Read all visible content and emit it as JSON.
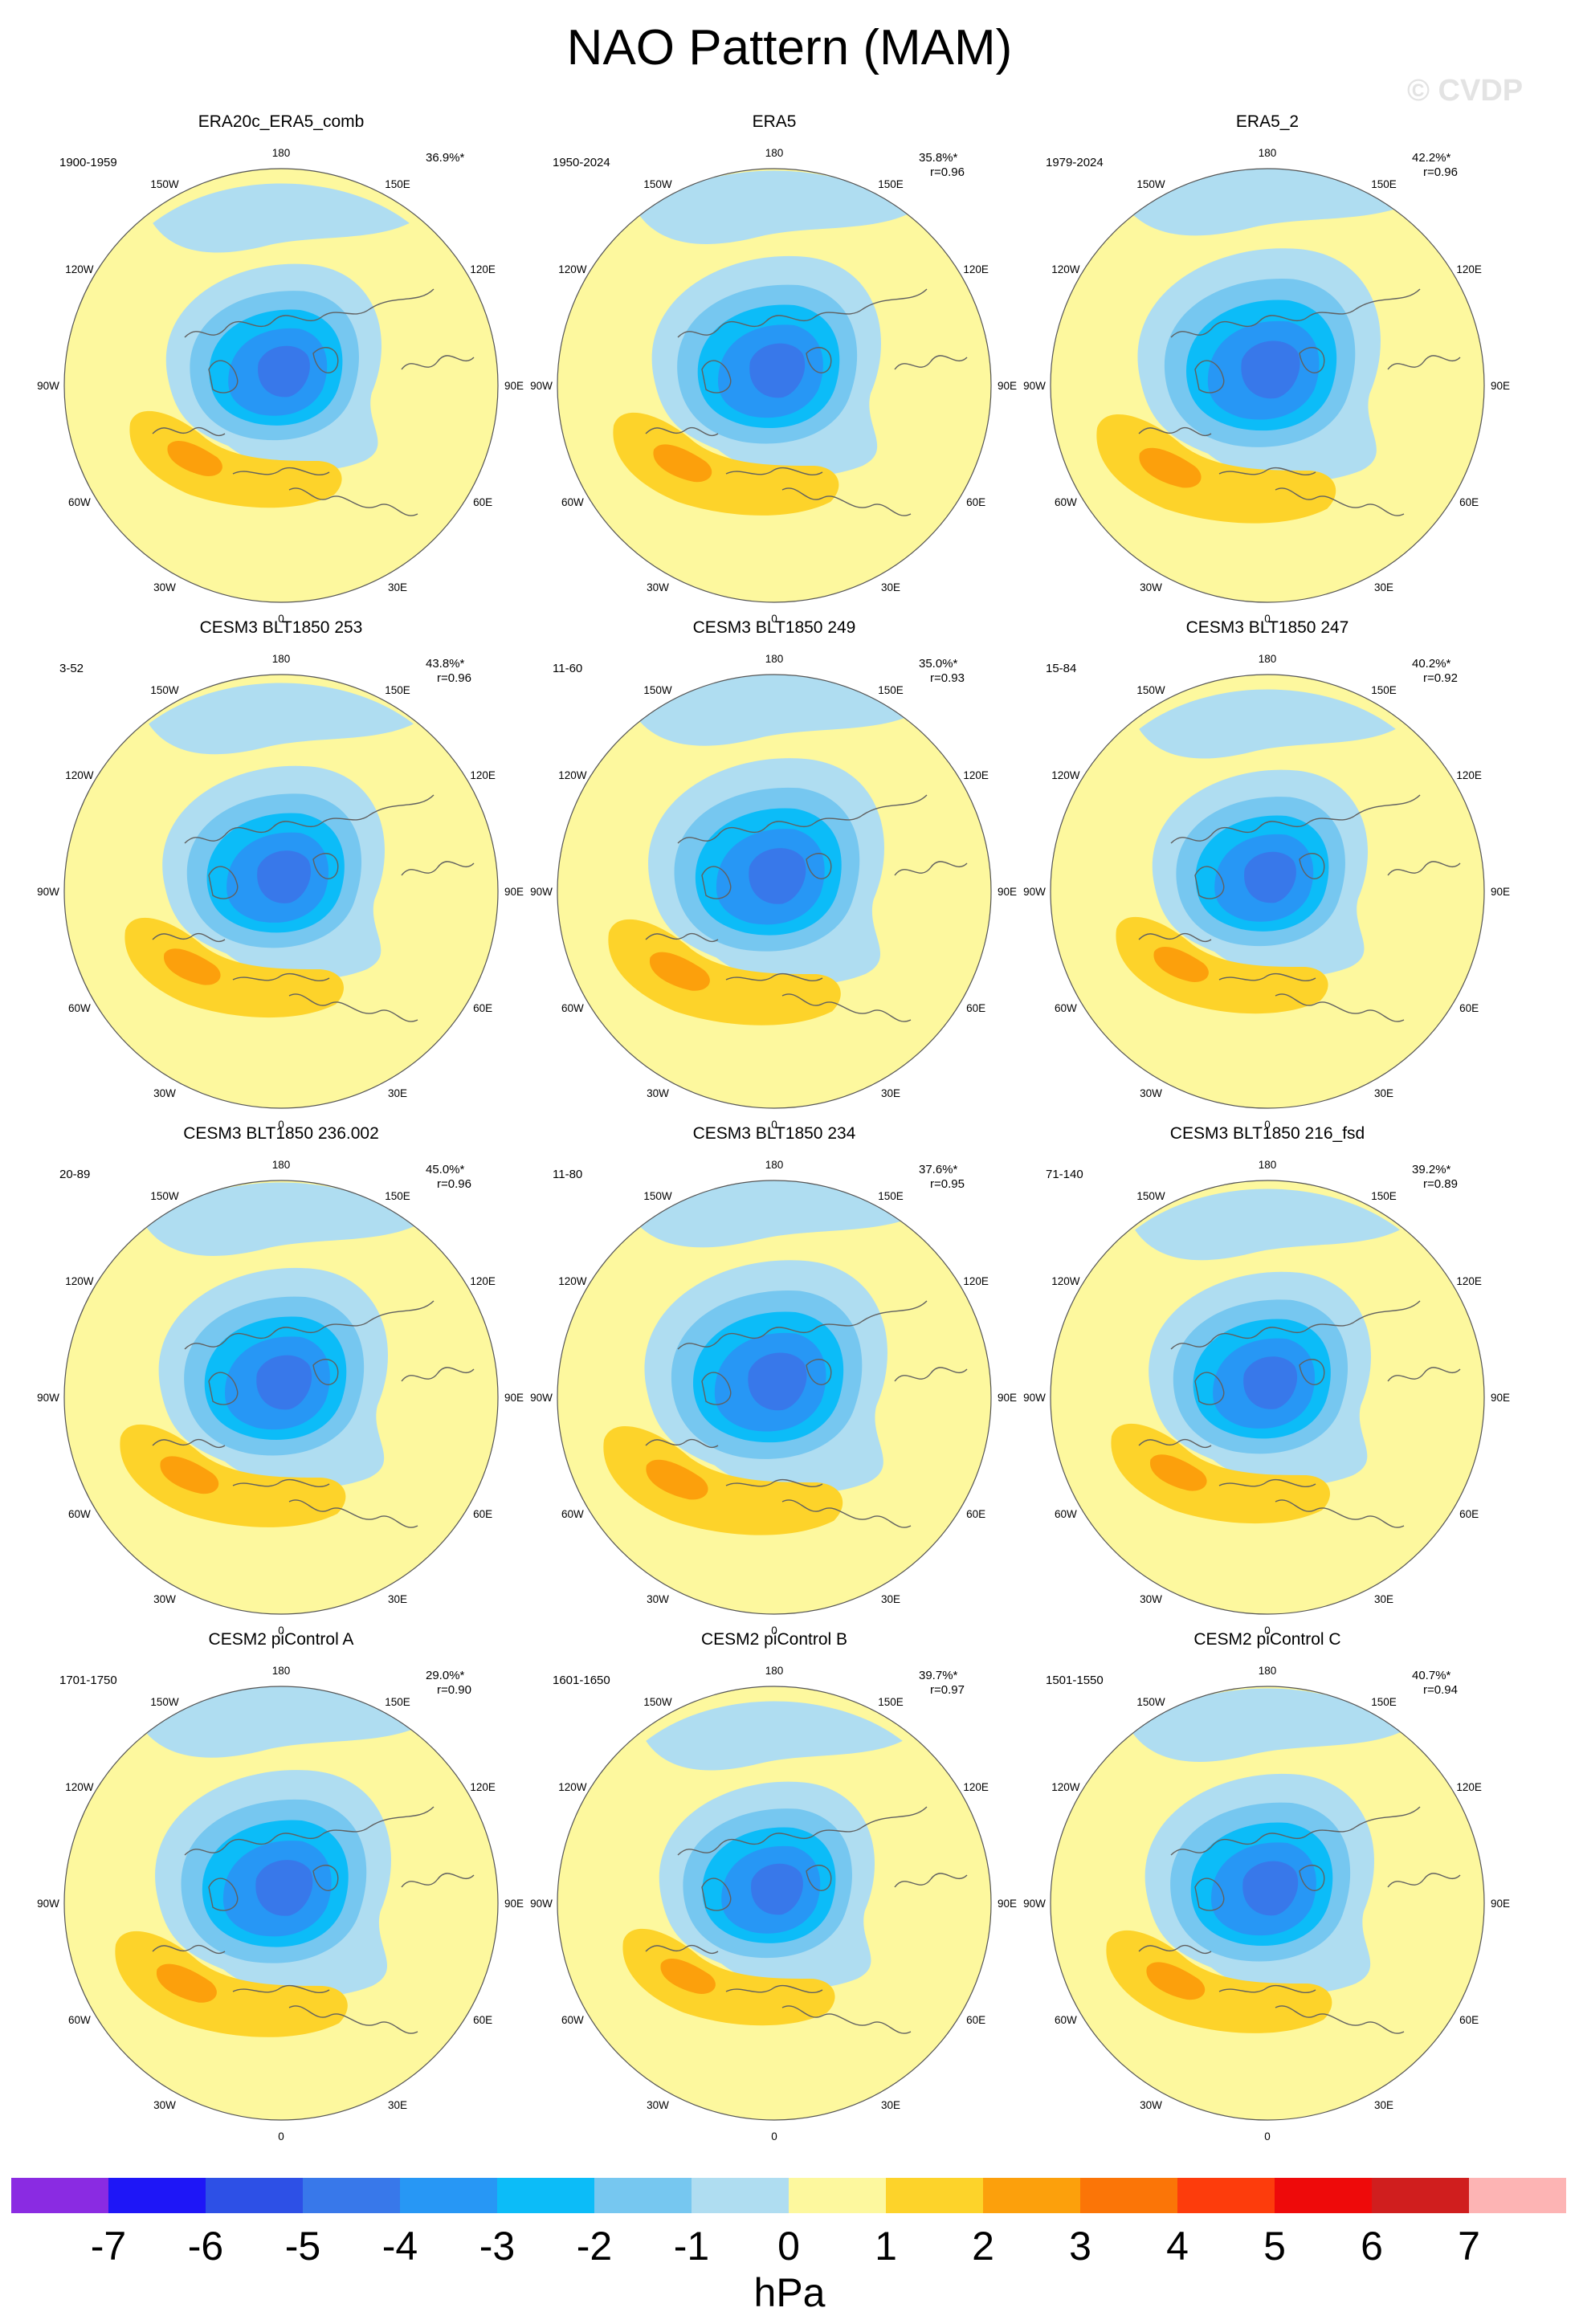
{
  "title": "NAO Pattern (MAM)",
  "watermark": "© CVDP",
  "colors": {
    "yellow": "#fdf89e",
    "lightblue": "#afddf1",
    "gold": "#fdd32a",
    "orange": "#fca00c",
    "midblue": "#76c7f0",
    "cyan": "#0cbcf8",
    "blue": "#2797f5",
    "royal": "#3878ea",
    "deepblue": "#2d50e6",
    "coast": "#606060"
  },
  "longitude_labels": [
    "180",
    "150E",
    "120E",
    "90E",
    "60E",
    "30E",
    "0",
    "30W",
    "60W",
    "90W",
    "120W",
    "150W"
  ],
  "panels": [
    {
      "title": "ERA20c_ERA5_comb",
      "period": "1900-1959",
      "percent": "36.9%*",
      "r": ""
    },
    {
      "title": "ERA5",
      "period": "1950-2024",
      "percent": "35.8%*",
      "r": "r=0.96"
    },
    {
      "title": "ERA5_2",
      "period": "1979-2024",
      "percent": "42.2%*",
      "r": "r=0.96"
    },
    {
      "title": "CESM3 BLT1850 253",
      "period": "3-52",
      "percent": "43.8%*",
      "r": "r=0.96"
    },
    {
      "title": "CESM3 BLT1850 249",
      "period": "11-60",
      "percent": "35.0%*",
      "r": "r=0.93"
    },
    {
      "title": "CESM3 BLT1850 247",
      "period": "15-84",
      "percent": "40.2%*",
      "r": "r=0.92"
    },
    {
      "title": "CESM3 BLT1850 236.002",
      "period": "20-89",
      "percent": "45.0%*",
      "r": "r=0.96"
    },
    {
      "title": "CESM3 BLT1850 234",
      "period": "11-80",
      "percent": "37.6%*",
      "r": "r=0.95"
    },
    {
      "title": "CESM3 BLT1850 216_fsd",
      "period": "71-140",
      "percent": "39.2%*",
      "r": "r=0.89"
    },
    {
      "title": "CESM2 piControl A",
      "period": "1701-1750",
      "percent": "29.0%*",
      "r": "r=0.90"
    },
    {
      "title": "CESM2 piControl B",
      "period": "1601-1650",
      "percent": "39.7%*",
      "r": "r=0.97"
    },
    {
      "title": "CESM2 piControl C",
      "period": "1501-1550",
      "percent": "40.7%*",
      "r": "r=0.94"
    }
  ],
  "colorbar": {
    "levels": [
      "-7",
      "-6",
      "-5",
      "-4",
      "-3",
      "-2",
      "-1",
      "0",
      "1",
      "2",
      "3",
      "4",
      "5",
      "6",
      "7"
    ],
    "colors": [
      "#8a2be2",
      "#1e16f7",
      "#2d50e6",
      "#3878ea",
      "#2797f5",
      "#0cbcf8",
      "#76c7f0",
      "#afddf1",
      "#fdf89e",
      "#fdd32a",
      "#fca00c",
      "#fb7507",
      "#fd3c0c",
      "#ee0a0a",
      "#d01e1e",
      "#fdb4b4"
    ],
    "units": "hPa"
  }
}
